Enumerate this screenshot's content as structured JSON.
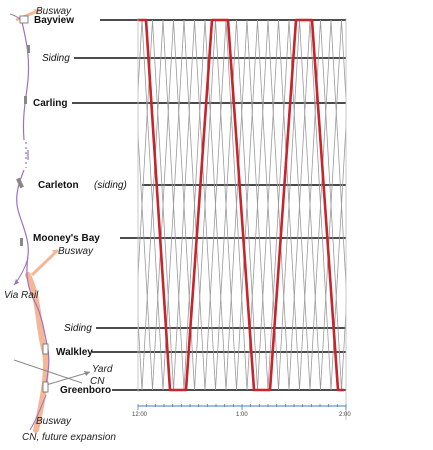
{
  "stations": [
    {
      "id": "bayview",
      "name": "Bayview",
      "style": "bold"
    },
    {
      "id": "siding-north",
      "name": "Siding",
      "style": "italic"
    },
    {
      "id": "carling",
      "name": "Carling",
      "style": "bold"
    },
    {
      "id": "carleton",
      "name": "Carleton",
      "suffix": "(siding)",
      "style": "bold"
    },
    {
      "id": "mooneys-bay",
      "name": "Mooney's Bay",
      "style": "bold"
    },
    {
      "id": "siding-south",
      "name": "Siding",
      "style": "italic"
    },
    {
      "id": "walkley",
      "name": "Walkley",
      "style": "bold"
    },
    {
      "id": "greenboro",
      "name": "Greenboro",
      "style": "bold"
    }
  ],
  "map_labels": {
    "busway_top": "Busway",
    "busway_mid": "Busway",
    "via_rail": "Via Rail",
    "yard": "Yard",
    "cn": "CN",
    "busway_bottom": "Busway",
    "cn_future": "CN, future expansion"
  },
  "time_axis": {
    "labels": [
      "12:00",
      "1:00",
      "2:00"
    ]
  },
  "colors": {
    "highlight_trip": "#c8242b",
    "other_trips": "#9a9a9a",
    "route_line": "#a070c0",
    "busway": "#f4b896",
    "axis": "#4a7fb5"
  }
}
